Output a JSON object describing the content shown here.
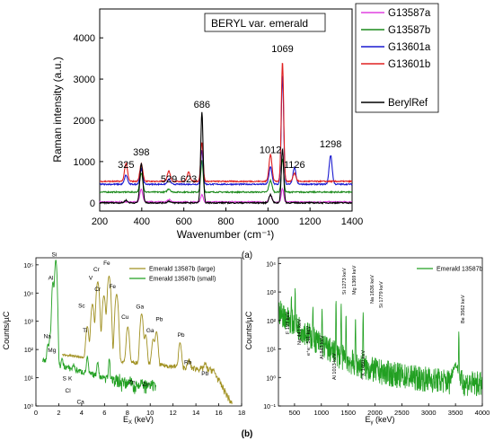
{
  "panel_labels": {
    "a": "(a)",
    "b": "(b)"
  },
  "chart_data": [
    {
      "type": "line",
      "panel": "(a)",
      "title": "",
      "xlabel": "Wavenumber (cm⁻¹)",
      "ylabel": "Raman intensity (a.u.)",
      "xlim": [
        200,
        1400
      ],
      "ylim": [
        -200,
        4700
      ],
      "xticks": [
        "200",
        "400",
        "600",
        "800",
        "1000",
        "1200",
        "1400"
      ],
      "yticks": [
        "0",
        "1000",
        "2000",
        "3000",
        "4000"
      ],
      "inset_label": "BERYL var. emerald",
      "grid": false,
      "legend_position": "top-right",
      "legend": [
        "G13587a",
        "G13587b",
        "G13601a",
        "G13601b",
        "BerylRef"
      ],
      "peak_labels": [
        {
          "x": 325,
          "text": "325"
        },
        {
          "x": 398,
          "text": "398"
        },
        {
          "x": 529,
          "text": "529"
        },
        {
          "x": 623,
          "text": "623"
        },
        {
          "x": 686,
          "text": "686"
        },
        {
          "x": 1012,
          "text": "1012"
        },
        {
          "x": 1069,
          "text": "1069"
        },
        {
          "x": 1126,
          "text": "1126"
        },
        {
          "x": 1298,
          "text": "1298"
        }
      ],
      "series": [
        {
          "name": "G13587a",
          "color": "#e040e0",
          "baseline": 20,
          "peaks": [
            [
              398,
              300
            ],
            [
              686,
              180
            ],
            [
              1012,
              150
            ],
            [
              1069,
              320
            ],
            [
              529,
              60
            ]
          ]
        },
        {
          "name": "G13587b",
          "color": "#1b8a1b",
          "baseline": 260,
          "peaks": [
            [
              398,
              460
            ],
            [
              686,
              760
            ],
            [
              1012,
              280
            ],
            [
              1069,
              820
            ],
            [
              529,
              80
            ]
          ]
        },
        {
          "name": "G13601a",
          "color": "#1a1ad0",
          "baseline": 450,
          "peaks": [
            [
              325,
              220
            ],
            [
              398,
              360
            ],
            [
              529,
              120
            ],
            [
              686,
              820
            ],
            [
              1012,
              420
            ],
            [
              1069,
              2650
            ],
            [
              1126,
              400
            ],
            [
              1298,
              700
            ]
          ]
        },
        {
          "name": "G13601b",
          "color": "#e02020",
          "baseline": 520,
          "peaks": [
            [
              325,
              430
            ],
            [
              398,
              420
            ],
            [
              529,
              250
            ],
            [
              623,
              220
            ],
            [
              686,
              950
            ],
            [
              1012,
              650
            ],
            [
              1069,
              2900
            ],
            [
              1126,
              200
            ]
          ]
        },
        {
          "name": "BerylRef",
          "color": "#000000",
          "baseline": 0,
          "peaks": [
            [
              325,
              60
            ],
            [
              398,
              950
            ],
            [
              529,
              40
            ],
            [
              686,
              2200
            ],
            [
              1012,
              200
            ],
            [
              1069,
              1300
            ]
          ]
        }
      ]
    },
    {
      "type": "line",
      "panel": "(b) left",
      "xlabel": "E",
      "xlabel_sub": "X",
      "xlabel_unit": " (keV)",
      "ylabel": "Counts/µC",
      "xlim": [
        0,
        18
      ],
      "ylog": true,
      "ylim": [
        1,
        100000
      ],
      "xticks": [
        "0",
        "2",
        "4",
        "6",
        "8",
        "10",
        "12",
        "14",
        "16",
        "18"
      ],
      "yticks": [
        "10⁰",
        "10¹",
        "10²",
        "10³",
        "10⁴",
        "10⁵"
      ],
      "legend_position": "top-right",
      "legend": [
        "Emerald 13587b (large)",
        "Emerald 13587b (small)"
      ],
      "series": [
        {
          "name": "Emerald 13587b (large)",
          "color": "#a09020"
        },
        {
          "name": "Emerald 13587b (small)",
          "color": "#22a022"
        }
      ],
      "element_labels": [
        {
          "x": 1.6,
          "y": 200000,
          "text": "Si"
        },
        {
          "x": 1.3,
          "y": 30000,
          "text": "Al"
        },
        {
          "x": 1.0,
          "y": 250,
          "text": "Na"
        },
        {
          "x": 1.4,
          "y": 80,
          "text": "Mg"
        },
        {
          "x": 2.5,
          "y": 8,
          "text": "S"
        },
        {
          "x": 3.0,
          "y": 8,
          "text": "K"
        },
        {
          "x": 2.8,
          "y": 3,
          "text": "Cl"
        },
        {
          "x": 3.9,
          "y": 1.2,
          "text": "Ca"
        },
        {
          "x": 4.3,
          "y": 400,
          "text": "Ti"
        },
        {
          "x": 4.0,
          "y": 3000,
          "text": "Sc"
        },
        {
          "x": 4.8,
          "y": 30000,
          "text": "V"
        },
        {
          "x": 5.3,
          "y": 60000,
          "text": "Cr"
        },
        {
          "x": 5.4,
          "y": 12000,
          "text": "Cr"
        },
        {
          "x": 6.2,
          "y": 100000,
          "text": "Fe"
        },
        {
          "x": 6.7,
          "y": 15000,
          "text": "Fe"
        },
        {
          "x": 7.8,
          "y": 1200,
          "text": "Cu"
        },
        {
          "x": 9.1,
          "y": 2800,
          "text": "Ga"
        },
        {
          "x": 8.4,
          "y": 6,
          "text": "Zn"
        },
        {
          "x": 9.6,
          "y": 5,
          "text": "Zn"
        },
        {
          "x": 10.0,
          "y": 400,
          "text": "Ga"
        },
        {
          "x": 10.8,
          "y": 1000,
          "text": "Pb"
        },
        {
          "x": 12.7,
          "y": 280,
          "text": "Pb"
        },
        {
          "x": 13.3,
          "y": 30,
          "text": "Rb"
        },
        {
          "x": 14.8,
          "y": 12,
          "text": "Pb"
        }
      ]
    },
    {
      "type": "line",
      "panel": "(b) right",
      "xlabel": "E",
      "xlabel_sub": "γ",
      "xlabel_unit": " (keV)",
      "ylabel": "Counts/µC",
      "xlim": [
        200,
        4000
      ],
      "ylog": true,
      "ylim": [
        0.1,
        10000
      ],
      "xticks": [
        "500",
        "1000",
        "1500",
        "2000",
        "2500",
        "3000",
        "3500",
        "4000"
      ],
      "yticks": [
        "10⁻¹",
        "10⁰",
        "10¹",
        "10²",
        "10³",
        "10⁴"
      ],
      "legend_position": "top-right",
      "legend": [
        "Emerald 13587b"
      ],
      "series": [
        {
          "name": "Emerald 13587b",
          "color": "#22a022"
        }
      ],
      "line_labels": [
        {
          "x": 197,
          "text": "F 197 keV"
        },
        {
          "x": 441,
          "text": "Na 441 keV"
        },
        {
          "x": 511,
          "text": "e⁺e⁻ 511 keV"
        },
        {
          "x": 843,
          "text": "Al 843 keV"
        },
        {
          "x": 1013,
          "text": "Al 1013 keV"
        },
        {
          "x": 1273,
          "text": "Si 1273 keV"
        },
        {
          "x": 1369,
          "text": "Mg 1369 keV"
        },
        {
          "x": 1460,
          "text": "⁴⁰K 1460 keV"
        },
        {
          "x": 1636,
          "text": "Na 1636 keV"
        },
        {
          "x": 1779,
          "text": "Si 1779 keV"
        },
        {
          "x": 3562,
          "text": "Be 3562 keV"
        }
      ]
    }
  ]
}
